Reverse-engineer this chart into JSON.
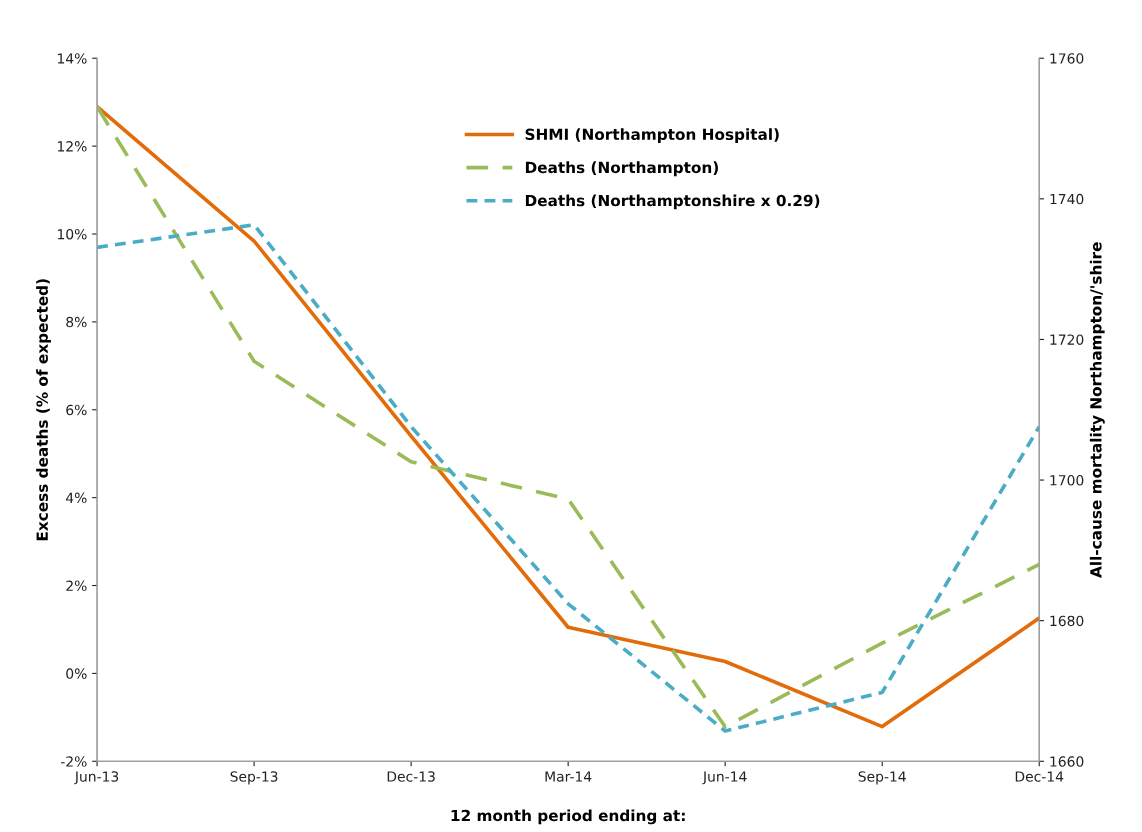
{
  "chart_data": {
    "type": "line",
    "xlabel": "12 month period ending at:",
    "ylabel": "Excess deaths (% of expected)",
    "y2label": "All-cause mortality Northampton/'shire",
    "categories": [
      "Jun-13",
      "Sep-13",
      "Dec-13",
      "Mar-14",
      "Jun-14",
      "Sep-14",
      "Dec-14"
    ],
    "series": [
      {
        "name": "SHMI (Northampton Hospital)",
        "color": "#e36c0a",
        "line_style": "solid",
        "values": [
          12.9,
          9.84,
          5.4,
          1.05,
          0.27,
          -1.21,
          1.26
        ]
      },
      {
        "name": "Deaths (Northampton)",
        "color": "#9bbb59",
        "line_style": "dashed",
        "axis": "y2",
        "values": [
          1753.1,
          1716.9,
          1702.6,
          1697.3,
          1664.9,
          1676.8,
          1688.0
        ]
      },
      {
        "name": "Deaths (Northamptonshire x 0.29)",
        "color": "#4bacc6",
        "line_style": "dotted",
        "axis": "y2",
        "values": [
          1733.1,
          1736.3,
          1707.6,
          1682.4,
          1664.3,
          1669.8,
          1707.6
        ]
      }
    ],
    "ylim": [
      -2,
      14
    ],
    "yticks": [
      {
        "value": -2,
        "label": "-2%"
      },
      {
        "value": 0,
        "label": "0%"
      },
      {
        "value": 2,
        "label": "2%"
      },
      {
        "value": 4,
        "label": "4%"
      },
      {
        "value": 6,
        "label": "6%"
      },
      {
        "value": 8,
        "label": "8%"
      },
      {
        "value": 10,
        "label": "10%"
      },
      {
        "value": 12,
        "label": "12%"
      },
      {
        "value": 14,
        "label": "14%"
      }
    ],
    "y2lim": [
      1660,
      1760
    ],
    "y2ticks": [
      1660,
      1680,
      1700,
      1720,
      1740,
      1760
    ],
    "grid": false,
    "legend": "top",
    "marker": "none"
  }
}
